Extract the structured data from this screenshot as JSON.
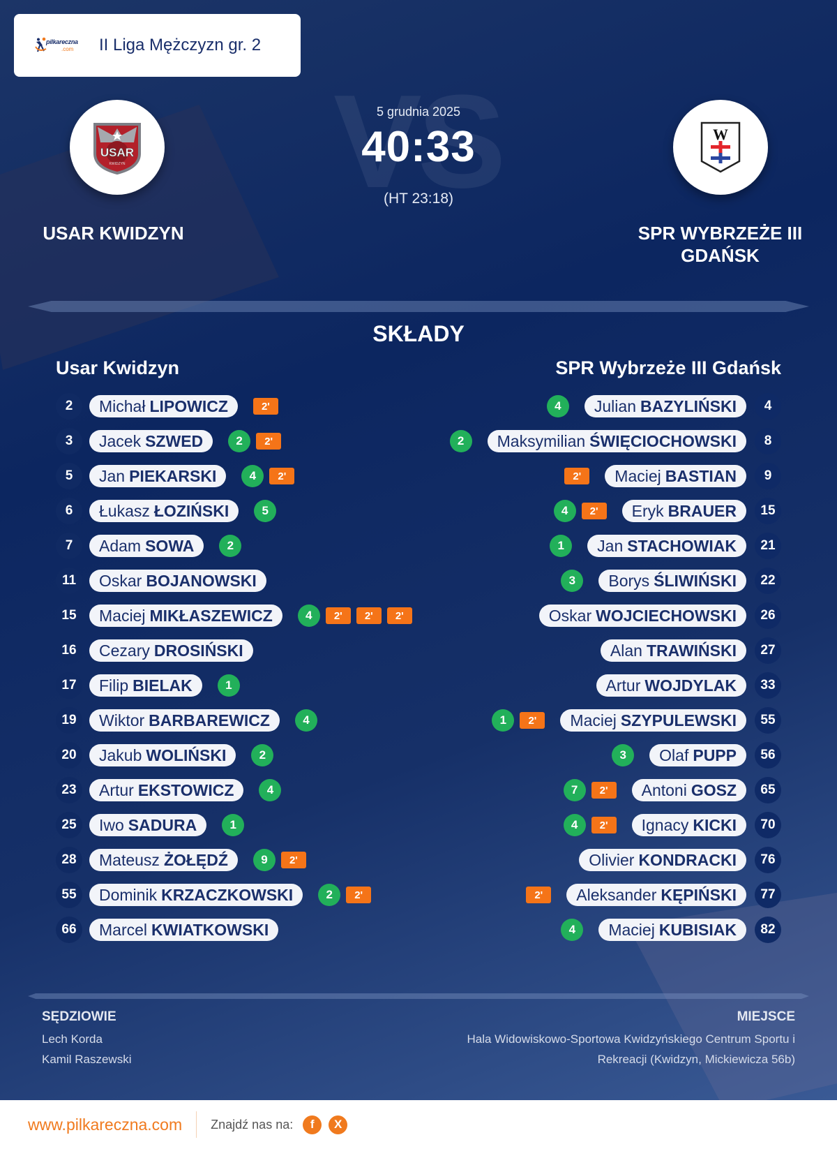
{
  "league": {
    "title": "II Liga Mężczyzn gr. 2",
    "brand_main": "pilkareczna",
    "brand_sub": ".com"
  },
  "match": {
    "date": "5 grudnia 2025",
    "score": "40:33",
    "halftime": "(HT 23:18)",
    "vs_watermark": "VS",
    "home_team": "USAR KWIDZYN",
    "away_team_line1": "SPR WYBRZEŻE III",
    "away_team_line2": "GDAŃSK"
  },
  "lineups": {
    "title": "SKŁADY",
    "home": {
      "name": "Usar Kwidzyn",
      "players": [
        {
          "number": "2",
          "first": "Michał",
          "last": "LIPOWICZ",
          "goals": null,
          "suspensions": [
            "2'"
          ]
        },
        {
          "number": "3",
          "first": "Jacek",
          "last": "SZWED",
          "goals": "2",
          "suspensions": [
            "2'"
          ]
        },
        {
          "number": "5",
          "first": "Jan",
          "last": "PIEKARSKI",
          "goals": "4",
          "suspensions": [
            "2'"
          ]
        },
        {
          "number": "6",
          "first": "Łukasz",
          "last": "ŁOZIŃSKI",
          "goals": "5",
          "suspensions": []
        },
        {
          "number": "7",
          "first": "Adam",
          "last": "SOWA",
          "goals": "2",
          "suspensions": []
        },
        {
          "number": "11",
          "first": "Oskar",
          "last": "BOJANOWSKI",
          "goals": null,
          "suspensions": []
        },
        {
          "number": "15",
          "first": "Maciej",
          "last": "MIKŁASZEWICZ",
          "goals": "4",
          "suspensions": [
            "2'",
            "2'",
            "2'"
          ]
        },
        {
          "number": "16",
          "first": "Cezary",
          "last": "DROSIŃSKI",
          "goals": null,
          "suspensions": []
        },
        {
          "number": "17",
          "first": "Filip",
          "last": "BIELAK",
          "goals": "1",
          "suspensions": []
        },
        {
          "number": "19",
          "first": "Wiktor",
          "last": "BARBAREWICZ",
          "goals": "4",
          "suspensions": []
        },
        {
          "number": "20",
          "first": "Jakub",
          "last": "WOLIŃSKI",
          "goals": "2",
          "suspensions": []
        },
        {
          "number": "23",
          "first": "Artur",
          "last": "EKSTOWICZ",
          "goals": "4",
          "suspensions": []
        },
        {
          "number": "25",
          "first": "Iwo",
          "last": "SADURA",
          "goals": "1",
          "suspensions": []
        },
        {
          "number": "28",
          "first": "Mateusz",
          "last": "ŻOŁĘDŹ",
          "goals": "9",
          "suspensions": [
            "2'"
          ]
        },
        {
          "number": "55",
          "first": "Dominik",
          "last": "KRZACZKOWSKI",
          "goals": "2",
          "suspensions": [
            "2'"
          ]
        },
        {
          "number": "66",
          "first": "Marcel",
          "last": "KWIATKOWSKI",
          "goals": null,
          "suspensions": []
        }
      ]
    },
    "away": {
      "name": "SPR Wybrzeże III Gdańsk",
      "players": [
        {
          "number": "4",
          "first": "Julian",
          "last": "BAZYLIŃSKI",
          "goals": "4",
          "suspensions": []
        },
        {
          "number": "8",
          "first": "Maksymilian",
          "last": "ŚWIĘCIOCHOWSKI",
          "goals": "2",
          "suspensions": []
        },
        {
          "number": "9",
          "first": "Maciej",
          "last": "BASTIAN",
          "goals": null,
          "suspensions": [
            "2'"
          ]
        },
        {
          "number": "15",
          "first": "Eryk",
          "last": "BRAUER",
          "goals": "4",
          "suspensions": [
            "2'"
          ]
        },
        {
          "number": "21",
          "first": "Jan",
          "last": "STACHOWIAK",
          "goals": "1",
          "suspensions": []
        },
        {
          "number": "22",
          "first": "Borys",
          "last": "ŚLIWIŃSKI",
          "goals": "3",
          "suspensions": []
        },
        {
          "number": "26",
          "first": "Oskar",
          "last": "WOJCIECHOWSKI",
          "goals": null,
          "suspensions": []
        },
        {
          "number": "27",
          "first": "Alan",
          "last": "TRAWIŃSKI",
          "goals": null,
          "suspensions": []
        },
        {
          "number": "33",
          "first": "Artur",
          "last": "WOJDYLAK",
          "goals": null,
          "suspensions": []
        },
        {
          "number": "55",
          "first": "Maciej",
          "last": "SZYPULEWSKI",
          "goals": "1",
          "suspensions": [
            "2'"
          ]
        },
        {
          "number": "56",
          "first": "Olaf",
          "last": "PUPP",
          "goals": "3",
          "suspensions": []
        },
        {
          "number": "65",
          "first": "Antoni",
          "last": "GOSZ",
          "goals": "7",
          "suspensions": [
            "2'"
          ]
        },
        {
          "number": "70",
          "first": "Ignacy",
          "last": "KICKI",
          "goals": "4",
          "suspensions": [
            "2'"
          ]
        },
        {
          "number": "76",
          "first": "Olivier",
          "last": "KONDRACKI",
          "goals": null,
          "suspensions": []
        },
        {
          "number": "77",
          "first": "Aleksander",
          "last": "KĘPIŃSKI",
          "goals": null,
          "suspensions": [
            "2'"
          ]
        },
        {
          "number": "82",
          "first": "Maciej",
          "last": "KUBISIAK",
          "goals": "4",
          "suspensions": []
        }
      ]
    }
  },
  "officials": {
    "label": "SĘDZIOWIE",
    "referees": [
      "Lech Korda",
      "Kamil Raszewski"
    ]
  },
  "venue": {
    "label": "MIEJSCE",
    "line1": "Hala Widowiskowo-Sportowa Kwidzyńskiego Centrum Sportu i",
    "line2": "Rekreacji (Kwidzyn, Mickiewicza 56b)"
  },
  "footer": {
    "website": "www.pilkareczna.com",
    "find_us": "Znajdź nas na:",
    "social": [
      {
        "name": "facebook",
        "glyph": "f"
      },
      {
        "name": "x",
        "glyph": "X"
      }
    ]
  },
  "colors": {
    "navy": "#0c2660",
    "goal_green": "#22b05a",
    "suspension_orange": "#f57418",
    "brand_orange": "#f07a1e",
    "pill_bg": "#f2f4f9"
  }
}
